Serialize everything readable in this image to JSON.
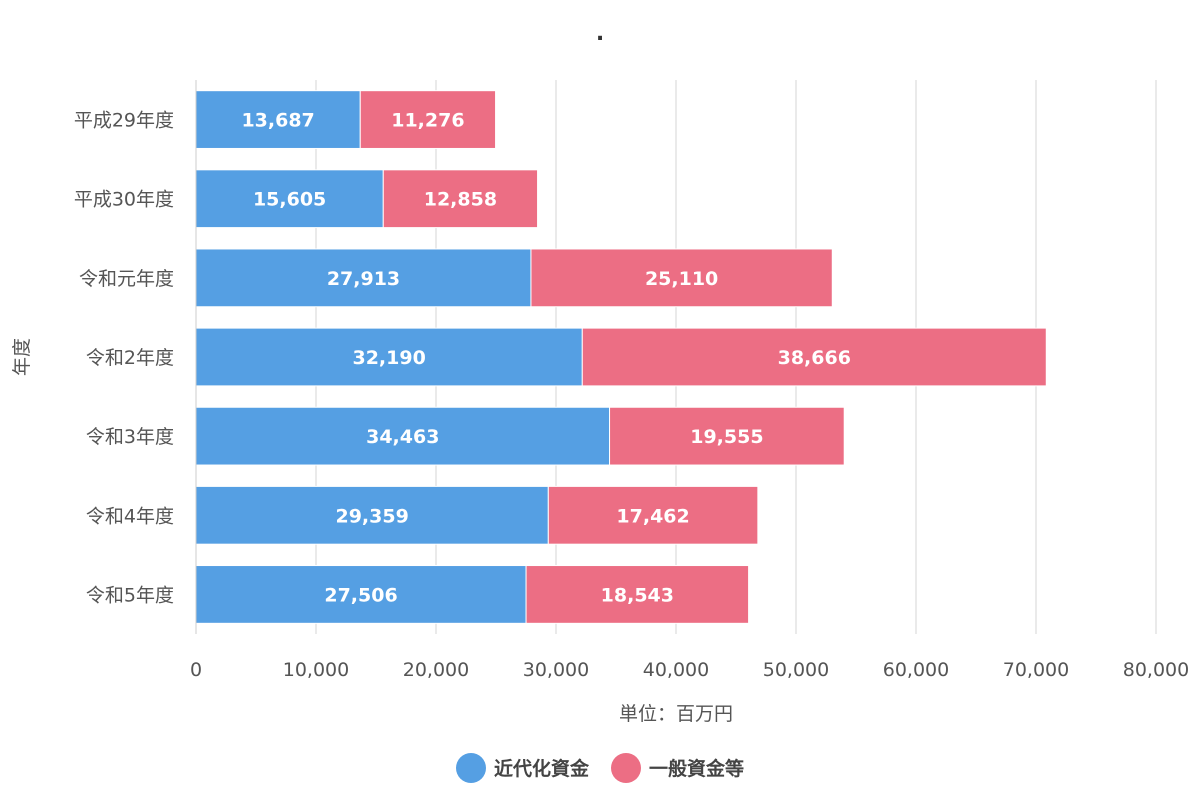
{
  "chart_data": {
    "type": "bar",
    "orientation": "horizontal",
    "stacked": true,
    "title": ".",
    "xlabel": "単位：百万円",
    "ylabel": "年度",
    "xlim": [
      0,
      80000
    ],
    "x_ticks": [
      0,
      10000,
      20000,
      30000,
      40000,
      50000,
      60000,
      70000,
      80000
    ],
    "x_tick_labels": [
      "0",
      "10,000",
      "20,000",
      "30,000",
      "40,000",
      "50,000",
      "60,000",
      "70,000",
      "80,000"
    ],
    "grid": true,
    "legend_position": "bottom",
    "categories": [
      "平成29年度",
      "平成30年度",
      "令和元年度",
      "令和2年度",
      "令和3年度",
      "令和4年度",
      "令和5年度"
    ],
    "series": [
      {
        "name": "近代化資金",
        "color": "#559fe3",
        "values": [
          13687,
          15605,
          27913,
          32190,
          34463,
          29359,
          27506
        ],
        "labels": [
          "13,687",
          "15,605",
          "27,913",
          "32,190",
          "34,463",
          "29,359",
          "27,506"
        ]
      },
      {
        "name": "一般資金等",
        "color": "#ec6e84",
        "values": [
          11276,
          12858,
          25110,
          38666,
          19555,
          17462,
          18543
        ],
        "labels": [
          "11,276",
          "12,858",
          "25,110",
          "38,666",
          "19,555",
          "17,462",
          "18,543"
        ]
      }
    ]
  }
}
